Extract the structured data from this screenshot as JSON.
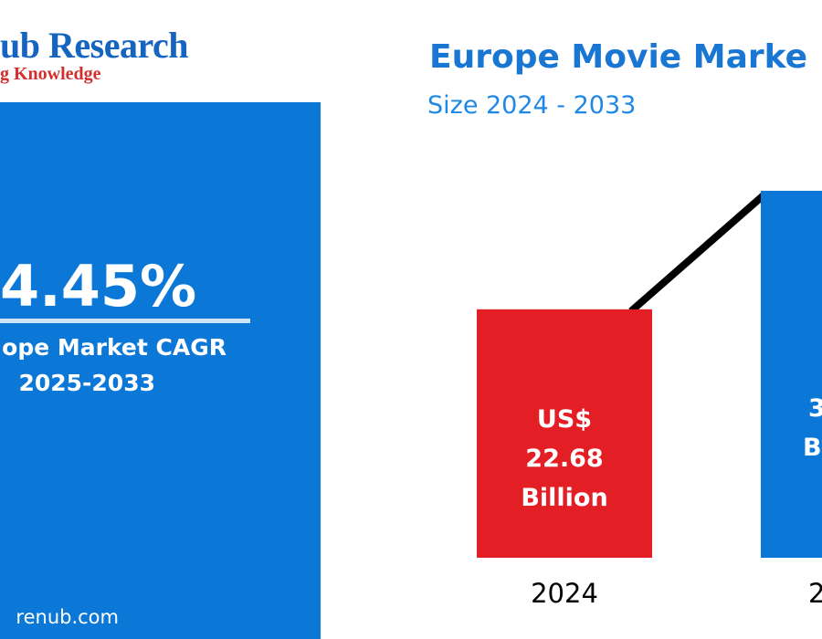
{
  "logo": {
    "name": "ub Research",
    "tagline": "g Knowledge"
  },
  "cagr": {
    "value": "4.45%",
    "label": "ope Market CAGR",
    "period": "2025-2033"
  },
  "website": "renub.com",
  "chart_data": {
    "type": "bar",
    "title": "Europe Movie Marke",
    "subtitle": "Size 2024 - 2033",
    "categories": [
      "2024",
      "2"
    ],
    "values": [
      22.68,
      33.5
    ],
    "data_labels": [
      [
        "US$",
        "22.68",
        "Billion"
      ],
      [
        "",
        "3",
        "B"
      ]
    ],
    "bar_colors": [
      "#e31e24",
      "#0b78d8"
    ],
    "connector_color": "#000000",
    "xlabel": "",
    "ylabel": "",
    "ylim": [
      0,
      35
    ],
    "grid": false
  }
}
